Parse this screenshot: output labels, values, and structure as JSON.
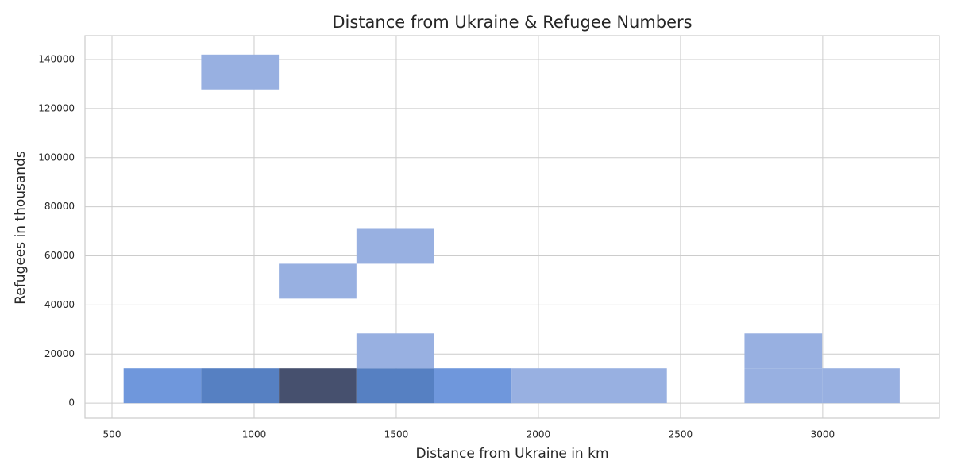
{
  "chart_data": {
    "type": "histogram2d",
    "title": "Distance from Ukraine & Refugee Numbers",
    "x_label": "Distance from Ukraine in km",
    "y_label": "Refugees in thousands",
    "xbins": [
      541,
      814,
      1087,
      1360,
      1633,
      1906,
      2179,
      2452,
      2725,
      2998,
      3271
    ],
    "ybins": [
      0,
      14200,
      28400,
      42600,
      56800,
      71000,
      85200,
      99400,
      113600,
      127800,
      142000
    ],
    "counts": [
      [
        2,
        3,
        4,
        3,
        2,
        1,
        1,
        0,
        1,
        1
      ],
      [
        0,
        0,
        0,
        1,
        0,
        0,
        0,
        0,
        1,
        0
      ],
      [
        0,
        0,
        0,
        0,
        0,
        0,
        0,
        0,
        0,
        0
      ],
      [
        0,
        0,
        1,
        0,
        0,
        0,
        0,
        0,
        0,
        0
      ],
      [
        0,
        0,
        0,
        1,
        0,
        0,
        0,
        0,
        0,
        0
      ],
      [
        0,
        0,
        0,
        0,
        0,
        0,
        0,
        0,
        0,
        0
      ],
      [
        0,
        0,
        0,
        0,
        0,
        0,
        0,
        0,
        0,
        0
      ],
      [
        0,
        0,
        0,
        0,
        0,
        0,
        0,
        0,
        0,
        0
      ],
      [
        0,
        0,
        0,
        0,
        0,
        0,
        0,
        0,
        0,
        0
      ],
      [
        0,
        1,
        0,
        0,
        0,
        0,
        0,
        0,
        0,
        0
      ]
    ],
    "count_colors": [
      "#98b0e1",
      "#6f97dc",
      "#5680c2",
      "#46506e"
    ],
    "xlim": [
      405,
      3411
    ],
    "ylim": [
      -6100,
      149700
    ],
    "xticks": [
      500,
      1000,
      1500,
      2000,
      2500,
      3000
    ],
    "yticks": [
      0,
      20000,
      40000,
      60000,
      80000,
      100000,
      120000,
      140000
    ],
    "grid": true
  }
}
